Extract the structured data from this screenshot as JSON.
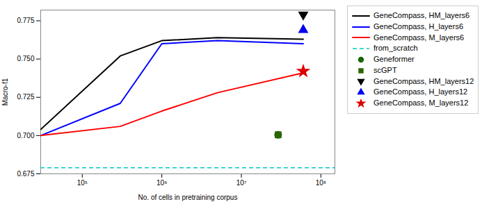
{
  "chart_data": {
    "type": "line",
    "xlabel": "No. of cells in pretraining corpus",
    "ylabel": "Macro-f1",
    "log": "x",
    "grid": false,
    "legend": "right",
    "xlim": [
      30000,
      150000000
    ],
    "xticks": [
      {
        "value": 100000,
        "label": "10⁵"
      },
      {
        "value": 1000000,
        "label": "10⁶"
      },
      {
        "value": 10000000,
        "label": "10⁷"
      },
      {
        "value": 100000000,
        "label": "10⁸"
      }
    ],
    "ylim": [
      0.675,
      0.782
    ],
    "yticks": [
      0.675,
      {
        "value": 0.7,
        "label": "0.700"
      },
      0.725,
      {
        "value": 0.75,
        "label": "0.750"
      },
      0.775
    ],
    "series": [
      {
        "name": "GeneCompass, HM_layers6",
        "type": "line",
        "color": "#000000",
        "line_style": "solid",
        "x": [
          30000,
          300000,
          1000000,
          5000000,
          60000000
        ],
        "values": [
          0.704,
          0.752,
          0.762,
          0.764,
          0.763
        ]
      },
      {
        "name": "GeneCompass, H_layers6",
        "type": "line",
        "color": "#0000ff",
        "line_style": "solid",
        "x": [
          30000,
          300000,
          1000000,
          5000000,
          60000000
        ],
        "values": [
          0.7,
          0.721,
          0.76,
          0.762,
          0.76
        ]
      },
      {
        "name": "GeneCompass, M_layers6",
        "type": "line",
        "color": "#ff0000",
        "line_style": "solid",
        "x": [
          30000,
          300000,
          1000000,
          5000000,
          60000000
        ],
        "values": [
          0.7,
          0.706,
          0.716,
          0.728,
          0.741
        ]
      },
      {
        "name": "from_scratch",
        "type": "hline",
        "color": "#00ccbb",
        "line_style": "dashed",
        "values": [
          0.679
        ]
      },
      {
        "name": "Geneformer",
        "type": "scatter",
        "color": "#1a6600",
        "marker": "circle",
        "x": [
          29000000
        ],
        "values": [
          0.7005
        ]
      },
      {
        "name": "scGPT",
        "type": "scatter",
        "color": "#2a6600",
        "marker": "square",
        "x": [
          29000000
        ],
        "values": [
          0.7005
        ]
      },
      {
        "name": "GeneCompass, HM_layers12",
        "type": "scatter",
        "color": "#000000",
        "marker": "triangle-down",
        "x": [
          60000000
        ],
        "values": [
          0.779
        ]
      },
      {
        "name": "GeneCompass, H_layers12",
        "type": "scatter",
        "color": "#0000ee",
        "marker": "triangle-up",
        "x": [
          60000000
        ],
        "values": [
          0.769
        ]
      },
      {
        "name": "GeneCompass, M_layers12",
        "type": "scatter",
        "color": "#dd0000",
        "marker": "star",
        "x": [
          60000000
        ],
        "values": [
          0.742
        ]
      }
    ]
  }
}
